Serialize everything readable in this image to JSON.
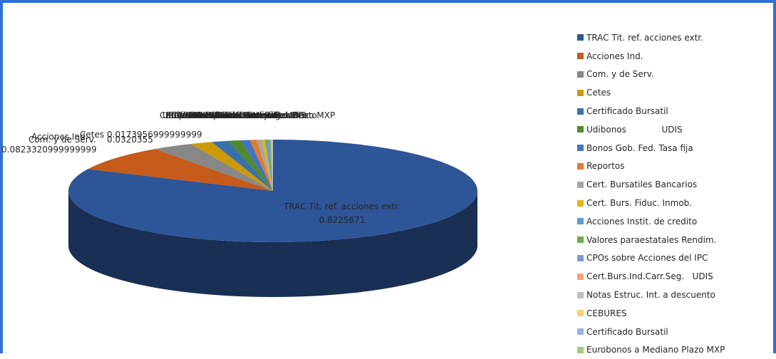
{
  "chart_data": {
    "type": "pie",
    "style": "3d-pie",
    "legend_position": "right",
    "series": [
      {
        "label": "TRAC Tit. ref. acciones extr.",
        "value": 0.8225671,
        "value_text": "0.8225671",
        "color": "#2e5597"
      },
      {
        "label": "Acciones Ind.",
        "value": 0.0823320999999999,
        "value_text": "0.0823320999999999",
        "color": "#c55a1b"
      },
      {
        "label": "Com. y de Serv.",
        "value": 0.0320355,
        "value_text": "0.0320355",
        "color": "#878787"
      },
      {
        "label": "Cetes",
        "value": 0.0173956999999999,
        "value_text": "0.0173956999999999",
        "color": "#cc9a06"
      },
      {
        "label": "Certificado Bursatil",
        "value": 0.0134,
        "value_text": "",
        "color": "#3b6fa9"
      },
      {
        "label": "Udibonos             UDIS",
        "value": 0.0098,
        "value_text": "",
        "color": "#4e8a2e"
      },
      {
        "label": "Bonos Gob. Fed. Tasa fija",
        "value": 0.0072,
        "value_text": "",
        "color": "#4472c4"
      },
      {
        "label": "Reportos",
        "value": 0.0055,
        "value_text": "",
        "color": "#e07b30"
      },
      {
        "label": "Cert. Bursatiles Bancarios",
        "value": 0.0038,
        "value_text": "",
        "color": "#a5a5a5"
      },
      {
        "label": "Cert. Burs. Fiduc. Inmob.",
        "value": 0.0027,
        "value_text": "",
        "color": "#e8b312"
      },
      {
        "label": "Acciones Instit. de credito",
        "value": 0.002,
        "value_text": "",
        "color": "#5b9bd5"
      },
      {
        "label": "Valores paraestatales Rendim.",
        "value": 0.0014,
        "value_text": "",
        "color": "#70ad47"
      },
      {
        "label": "CPOs sobre Acciones del IPC",
        "value": 0.001,
        "value_text": "",
        "color": "#7f98d6"
      },
      {
        "label": "Cert.Burs.Ind.Carr.Seg.   UDIS",
        "value": 0.0007,
        "value_text": "",
        "color": "#f4a07a"
      },
      {
        "label": "Notas Estruc. Int. a descuento",
        "value": 0.0005,
        "value_text": "",
        "color": "#bfbfbf"
      },
      {
        "label": "CEBURES",
        "value": 0.0003,
        "value_text": "",
        "color": "#fdcf6e"
      },
      {
        "label": "Certificado Bursatil",
        "value": 0.0002,
        "value_text": "",
        "color": "#8fb4e3"
      },
      {
        "label": "Eurobonos a Mediano Plazo MXP",
        "value": 0.0001,
        "value_text": "",
        "color": "#9ccb7c"
      }
    ]
  }
}
